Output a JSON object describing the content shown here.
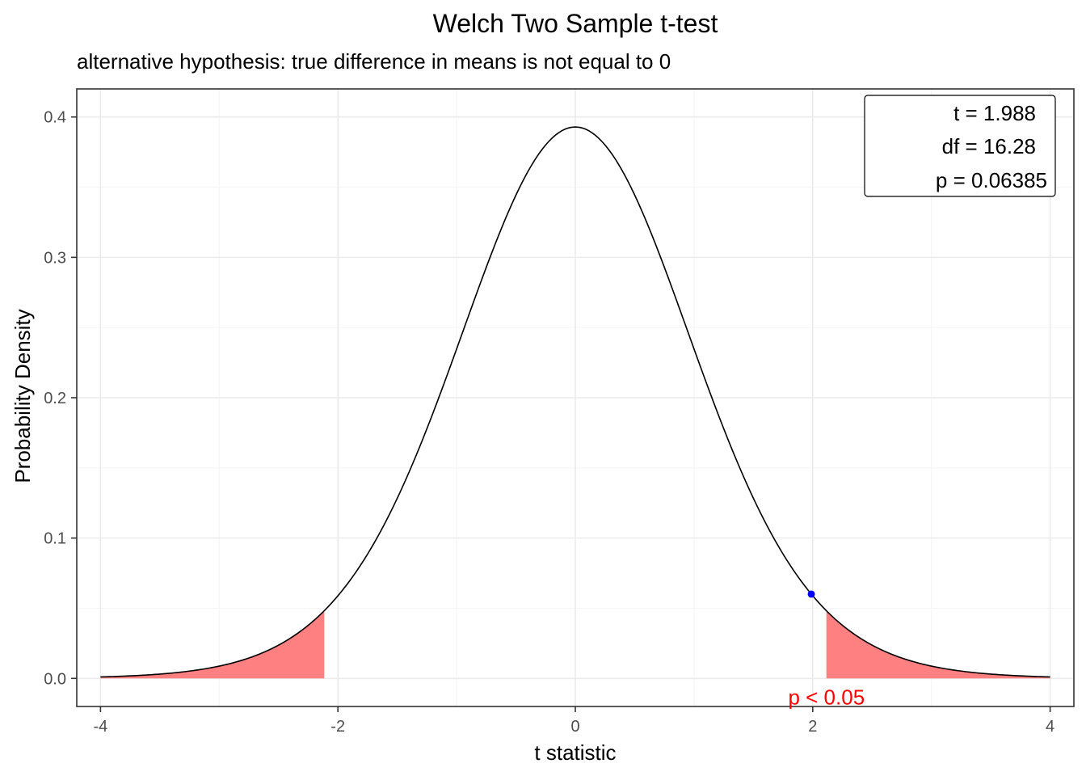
{
  "chart_data": {
    "type": "line",
    "title": "Welch Two Sample t-test",
    "subtitle": "alternative hypothesis: true difference in means is not equal to 0",
    "xlabel": "t statistic",
    "ylabel": "Probability Density",
    "xlim": [
      -4.2,
      4.2
    ],
    "ylim": [
      -0.02,
      0.42
    ],
    "x_ticks": [
      -4,
      -2,
      0,
      2,
      4
    ],
    "y_ticks": [
      0.0,
      0.1,
      0.2,
      0.3,
      0.4
    ],
    "x_tick_labels": [
      "-4",
      "-2",
      "0",
      "2",
      "4"
    ],
    "y_tick_labels": [
      "0.0",
      "0.1",
      "0.2",
      "0.3",
      "0.4"
    ],
    "grid": true,
    "distribution": {
      "family": "t",
      "df": 16.28,
      "x_range": [
        -4,
        4
      ]
    },
    "observed": {
      "t": 1.988,
      "density": 0.0594,
      "color": "#0000ff"
    },
    "rejection_region": {
      "lower": [
        -4,
        -2.115
      ],
      "upper": [
        2.115,
        4
      ],
      "fill": "#ff8080"
    },
    "rejection_label": {
      "text": "p < 0.05",
      "x": 2.0,
      "y": -0.014,
      "color": "#ff0000"
    },
    "stats_box": {
      "position": "top-right",
      "lines": [
        "t = 1.988",
        "df = 16.28",
        "p = 0.06385"
      ]
    },
    "line_color": "#000000"
  }
}
